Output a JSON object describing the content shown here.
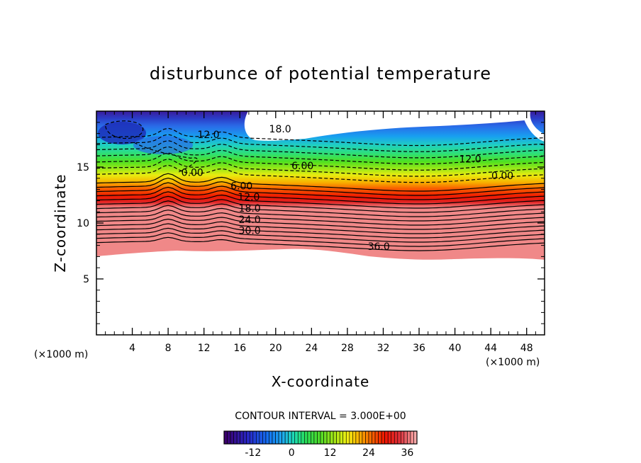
{
  "chart_data": {
    "type": "contour",
    "title": "disturbunce of potential temperature",
    "xlabel": "X-coordinate",
    "ylabel": "Z-coordinate",
    "x_unit": "(×1000 m)",
    "y_unit": "(×1000 m)",
    "xlim": [
      0,
      50
    ],
    "ylim": [
      0,
      20
    ],
    "x_ticks": [
      4,
      8,
      12,
      16,
      20,
      24,
      28,
      32,
      36,
      40,
      44,
      48
    ],
    "y_ticks": [
      5,
      10,
      15
    ],
    "contour_interval_label": "CONTOUR INTERVAL = 3.000E+00",
    "contour_interval": 3.0,
    "colorbar": {
      "min": -21,
      "max": 39,
      "ticks": [
        -12,
        0,
        12,
        24,
        36
      ]
    },
    "contour_labels": [
      {
        "text": "12.0",
        "x": 12.5,
        "z": 17.8
      },
      {
        "text": "18.0",
        "x": 20.5,
        "z": 18.3
      },
      {
        "text": "0.00",
        "x": 10.7,
        "z": 14.4
      },
      {
        "text": "6.00",
        "x": 23.0,
        "z": 15.0
      },
      {
        "text": "12.0",
        "x": 41.7,
        "z": 15.6
      },
      {
        "text": "0.00",
        "x": 45.3,
        "z": 14.1
      },
      {
        "text": "6.00",
        "x": 16.2,
        "z": 13.2
      },
      {
        "text": "12.0",
        "x": 17.0,
        "z": 12.2
      },
      {
        "text": "18.0",
        "x": 17.1,
        "z": 11.2
      },
      {
        "text": "24.0",
        "x": 17.1,
        "z": 10.2
      },
      {
        "text": "30.0",
        "x": 17.1,
        "z": 9.2
      },
      {
        "text": "36.0",
        "x": 31.5,
        "z": 7.8
      }
    ]
  }
}
